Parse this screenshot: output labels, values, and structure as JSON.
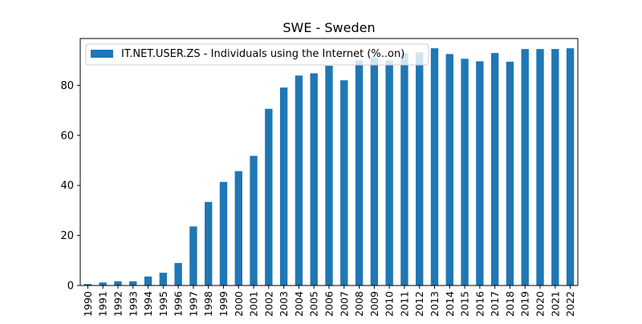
{
  "chart_data": {
    "type": "bar",
    "title": "SWE - Sweden",
    "xlabel": "",
    "ylabel": "",
    "ylim": [
      0,
      98.7
    ],
    "yticks": [
      0,
      20,
      40,
      60,
      80
    ],
    "grid": false,
    "legend_position": "top-left",
    "bar_color": "#1f77b4",
    "categories": [
      "1990",
      "1991",
      "1992",
      "1993",
      "1994",
      "1995",
      "1996",
      "1997",
      "1998",
      "1999",
      "2000",
      "2001",
      "2002",
      "2003",
      "2004",
      "2005",
      "2006",
      "2007",
      "2008",
      "2009",
      "2010",
      "2011",
      "2012",
      "2013",
      "2014",
      "2015",
      "2016",
      "2017",
      "2018",
      "2019",
      "2020",
      "2021",
      "2022"
    ],
    "series": [
      {
        "name": "IT.NET.USER.ZS - Individuals using the Internet (%..on)",
        "values": [
          0.6,
          1.2,
          1.7,
          1.7,
          3.6,
          5.1,
          9.0,
          23.6,
          33.4,
          41.4,
          45.7,
          51.8,
          70.6,
          79.1,
          83.9,
          84.8,
          87.8,
          82.0,
          90.0,
          91.0,
          90.0,
          92.8,
          93.2,
          94.8,
          92.5,
          90.6,
          89.6,
          92.9,
          89.4,
          94.5,
          94.5,
          94.5,
          94.8
        ]
      }
    ]
  }
}
